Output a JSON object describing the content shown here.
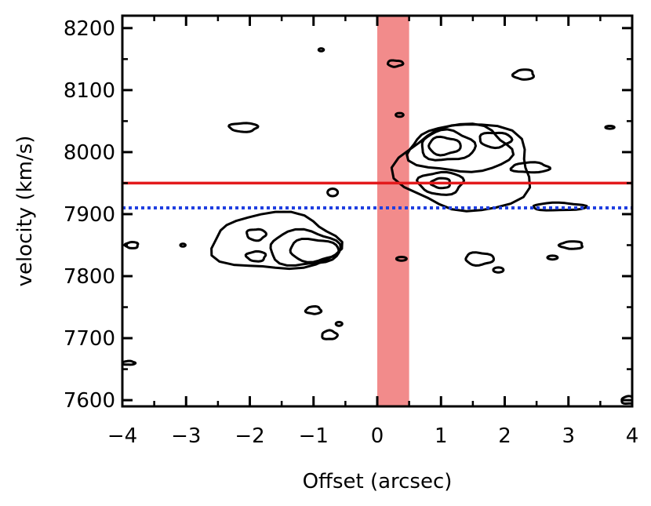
{
  "chart_data": {
    "type": "contour",
    "xlabel": "Offset (arcsec)",
    "ylabel": "velocity (km/s)",
    "xlim": [
      -4,
      4
    ],
    "ylim": [
      7590,
      8220
    ],
    "xticks": [
      -4,
      -3,
      -2,
      -1,
      0,
      1,
      2,
      3,
      4
    ],
    "xtick_labels": [
      "−4",
      "−3",
      "−2",
      "−1",
      "0",
      "1",
      "2",
      "3",
      "4"
    ],
    "yticks": [
      7600,
      7700,
      7800,
      7900,
      8000,
      8100,
      8200
    ],
    "ytick_labels": [
      "7600",
      "7700",
      "7800",
      "7900",
      "8000",
      "8100",
      "8200"
    ],
    "grid": false,
    "shaded_band": {
      "x_from": 0,
      "x_to": 0.5,
      "color": "#f28b8b"
    },
    "horizontal_lines": [
      {
        "y": 7950,
        "style": "solid",
        "color": "#e31a1c"
      },
      {
        "y": 7910,
        "style": "dotted",
        "color": "#1f3fe0"
      }
    ],
    "contours": [
      {
        "cx": -1.6,
        "cy": 7855,
        "rx": 1.0,
        "ry": 45,
        "level": 1
      },
      {
        "cx": -1.15,
        "cy": 7845,
        "rx": 0.55,
        "ry": 28,
        "level": 2
      },
      {
        "cx": -1.0,
        "cy": 7842,
        "rx": 0.38,
        "ry": 18,
        "level": 3
      },
      {
        "cx": -1.9,
        "cy": 7867,
        "rx": 0.15,
        "ry": 9,
        "level": 2
      },
      {
        "cx": -1.9,
        "cy": 7832,
        "rx": 0.15,
        "ry": 8,
        "level": 2
      },
      {
        "cx": 1.4,
        "cy": 7975,
        "rx": 1.05,
        "ry": 70,
        "level": 1
      },
      {
        "cx": 1.3,
        "cy": 8005,
        "rx": 0.8,
        "ry": 38,
        "level": 2
      },
      {
        "cx": 1.1,
        "cy": 8010,
        "rx": 0.42,
        "ry": 24,
        "level": 3
      },
      {
        "cx": 1.05,
        "cy": 8010,
        "rx": 0.25,
        "ry": 14,
        "level": 4
      },
      {
        "cx": 1.85,
        "cy": 8020,
        "rx": 0.25,
        "ry": 12,
        "level": 3
      },
      {
        "cx": 1.0,
        "cy": 7950,
        "rx": 0.35,
        "ry": 18,
        "level": 2
      },
      {
        "cx": 1.0,
        "cy": 7950,
        "rx": 0.15,
        "ry": 8,
        "level": 3
      },
      {
        "cx": -1.0,
        "cy": 7745,
        "rx": 0.12,
        "ry": 6,
        "level": 1
      },
      {
        "cx": -0.75,
        "cy": 7705,
        "rx": 0.12,
        "ry": 7,
        "level": 1
      },
      {
        "cx": -0.6,
        "cy": 7723,
        "rx": 0.05,
        "ry": 3,
        "level": 1
      },
      {
        "cx": -0.7,
        "cy": 7935,
        "rx": 0.08,
        "ry": 6,
        "level": 1
      },
      {
        "cx": -2.1,
        "cy": 8040,
        "rx": 0.22,
        "ry": 7,
        "level": 1
      },
      {
        "cx": -3.85,
        "cy": 7850,
        "rx": 0.1,
        "ry": 5,
        "level": 1
      },
      {
        "cx": -3.05,
        "cy": 7850,
        "rx": 0.04,
        "ry": 2,
        "level": 1
      },
      {
        "cx": -3.9,
        "cy": 7660,
        "rx": 0.1,
        "ry": 3,
        "level": 1
      },
      {
        "cx": -0.88,
        "cy": 8165,
        "rx": 0.04,
        "ry": 2,
        "level": 1
      },
      {
        "cx": 0.28,
        "cy": 8143,
        "rx": 0.12,
        "ry": 5,
        "level": 1
      },
      {
        "cx": 0.35,
        "cy": 8060,
        "rx": 0.06,
        "ry": 3,
        "level": 1
      },
      {
        "cx": 0.38,
        "cy": 7828,
        "rx": 0.08,
        "ry": 3,
        "level": 1
      },
      {
        "cx": 2.3,
        "cy": 8125,
        "rx": 0.16,
        "ry": 8,
        "level": 1
      },
      {
        "cx": 2.4,
        "cy": 7975,
        "rx": 0.3,
        "ry": 8,
        "level": 1
      },
      {
        "cx": 2.85,
        "cy": 7912,
        "rx": 0.42,
        "ry": 6,
        "level": 1
      },
      {
        "cx": 1.6,
        "cy": 7828,
        "rx": 0.22,
        "ry": 10,
        "level": 1
      },
      {
        "cx": 1.9,
        "cy": 7810,
        "rx": 0.08,
        "ry": 4,
        "level": 1
      },
      {
        "cx": 2.75,
        "cy": 7830,
        "rx": 0.08,
        "ry": 3,
        "level": 1
      },
      {
        "cx": 3.05,
        "cy": 7850,
        "rx": 0.18,
        "ry": 6,
        "level": 1
      },
      {
        "cx": 3.65,
        "cy": 8040,
        "rx": 0.07,
        "ry": 2,
        "level": 1
      },
      {
        "cx": 3.95,
        "cy": 7600,
        "rx": 0.12,
        "ry": 6,
        "level": 1
      }
    ]
  }
}
